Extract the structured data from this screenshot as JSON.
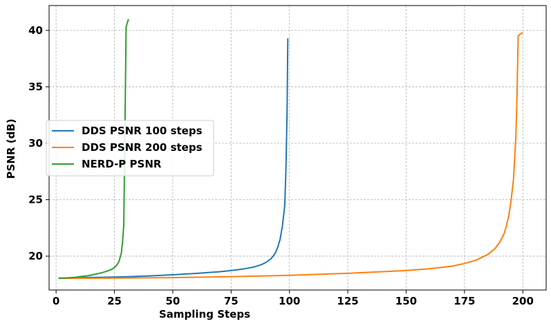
{
  "chart_data": {
    "type": "line",
    "title": "",
    "xlabel": "Sampling Steps",
    "ylabel": "PSNR (dB)",
    "xlim": [
      -3,
      210
    ],
    "ylim": [
      17,
      42.2
    ],
    "xticks": [
      0,
      25,
      50,
      75,
      100,
      125,
      150,
      175,
      200
    ],
    "yticks": [
      20,
      25,
      30,
      35,
      40
    ],
    "grid": true,
    "legend_position": "center-left",
    "series": [
      {
        "name": "DDS PSNR 100 steps",
        "color": "#1f77b4",
        "points": [
          [
            1,
            18.05
          ],
          [
            10,
            18.1
          ],
          [
            20,
            18.13
          ],
          [
            30,
            18.17
          ],
          [
            40,
            18.25
          ],
          [
            50,
            18.35
          ],
          [
            60,
            18.47
          ],
          [
            70,
            18.62
          ],
          [
            75,
            18.72
          ],
          [
            80,
            18.85
          ],
          [
            85,
            19.05
          ],
          [
            88,
            19.25
          ],
          [
            90,
            19.45
          ],
          [
            92,
            19.75
          ],
          [
            93,
            20.0
          ],
          [
            94,
            20.3
          ],
          [
            95,
            20.8
          ],
          [
            96,
            21.5
          ],
          [
            97,
            22.7
          ],
          [
            98,
            24.5
          ],
          [
            98.5,
            27.7
          ],
          [
            99,
            33.0
          ],
          [
            99.3,
            39.3
          ]
        ]
      },
      {
        "name": "DDS PSNR 200 steps",
        "color": "#ff7f0e",
        "points": [
          [
            1,
            18.03
          ],
          [
            25,
            18.06
          ],
          [
            50,
            18.1
          ],
          [
            75,
            18.18
          ],
          [
            100,
            18.3
          ],
          [
            125,
            18.48
          ],
          [
            150,
            18.72
          ],
          [
            160,
            18.88
          ],
          [
            170,
            19.12
          ],
          [
            175,
            19.35
          ],
          [
            180,
            19.65
          ],
          [
            185,
            20.15
          ],
          [
            188,
            20.65
          ],
          [
            190,
            21.2
          ],
          [
            192,
            22.0
          ],
          [
            193,
            22.7
          ],
          [
            194,
            23.6
          ],
          [
            195,
            25.0
          ],
          [
            196,
            26.8
          ],
          [
            197,
            30.5
          ],
          [
            197.5,
            34.0
          ],
          [
            198,
            39.5
          ],
          [
            199,
            39.7
          ],
          [
            200,
            39.8
          ]
        ]
      },
      {
        "name": "NERD-P PSNR",
        "color": "#2ca02c",
        "points": [
          [
            1,
            18.05
          ],
          [
            3,
            18.06
          ],
          [
            5,
            18.08
          ],
          [
            8,
            18.12
          ],
          [
            10,
            18.18
          ],
          [
            13,
            18.25
          ],
          [
            15,
            18.32
          ],
          [
            18,
            18.45
          ],
          [
            20,
            18.55
          ],
          [
            22,
            18.68
          ],
          [
            24,
            18.85
          ],
          [
            25,
            19.0
          ],
          [
            26,
            19.2
          ],
          [
            27,
            19.55
          ],
          [
            28,
            20.3
          ],
          [
            28.5,
            21.3
          ],
          [
            29,
            22.7
          ],
          [
            29.5,
            31.0
          ],
          [
            30,
            40.3
          ],
          [
            31,
            41.0
          ]
        ]
      }
    ]
  }
}
